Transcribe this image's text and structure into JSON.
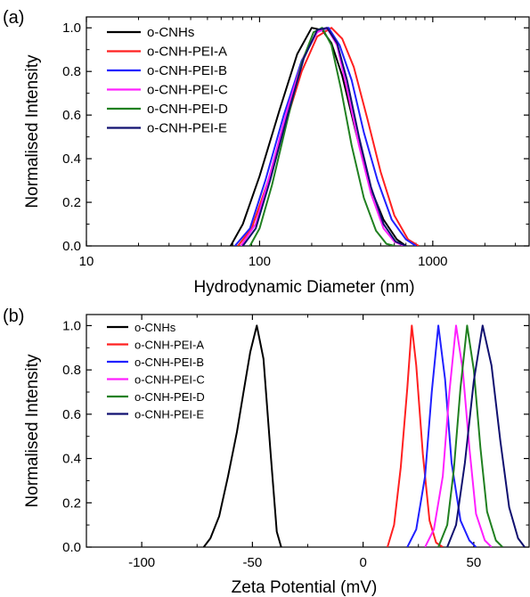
{
  "colors": {
    "o-CNHs": "#000000",
    "o-CNH-PEI-A": "#ff2020",
    "o-CNH-PEI-B": "#2020ff",
    "o-CNH-PEI-C": "#ff20ff",
    "o-CNH-PEI-D": "#208020",
    "o-CNH-PEI-E": "#101070"
  },
  "chart_data": [
    {
      "type": "line",
      "panel_label": "(a)",
      "xlabel": "Hydrodynamic Diameter (nm)",
      "ylabel": "Normalised Intensity",
      "x_scale": "log",
      "xlim": [
        10,
        3600
      ],
      "ylim": [
        0,
        1.05
      ],
      "x_ticks": [
        10,
        100,
        1000
      ],
      "x_tick_labels": [
        "10",
        "100",
        "1000"
      ],
      "y_ticks": [
        0,
        0.2,
        0.4,
        0.6,
        0.8,
        1.0
      ],
      "y_tick_labels": [
        "0.0",
        "0.2",
        "0.4",
        "0.6",
        "0.8",
        "1.0"
      ],
      "legend_position": "top-left",
      "series": [
        {
          "name": "o-CNHs",
          "x": [
            68,
            80,
            100,
            130,
            165,
            200,
            230,
            260,
            300,
            360,
            430,
            520,
            620,
            700
          ],
          "y": [
            0,
            0.1,
            0.32,
            0.62,
            0.88,
            1.0,
            0.99,
            0.93,
            0.78,
            0.52,
            0.28,
            0.12,
            0.03,
            0
          ]
        },
        {
          "name": "o-CNH-PEI-A",
          "x": [
            75,
            90,
            110,
            140,
            175,
            215,
            260,
            300,
            350,
            420,
            500,
            600,
            720,
            830
          ],
          "y": [
            0,
            0.08,
            0.28,
            0.55,
            0.8,
            0.96,
            1.0,
            0.95,
            0.82,
            0.58,
            0.34,
            0.14,
            0.03,
            0
          ]
        },
        {
          "name": "o-CNH-PEI-B",
          "x": [
            72,
            88,
            108,
            138,
            175,
            215,
            250,
            290,
            340,
            400,
            480,
            580,
            700,
            800
          ],
          "y": [
            0,
            0.08,
            0.3,
            0.6,
            0.85,
            0.98,
            1.0,
            0.92,
            0.76,
            0.52,
            0.3,
            0.12,
            0.03,
            0
          ]
        },
        {
          "name": "o-CNH-PEI-C",
          "x": [
            78,
            95,
            115,
            145,
            180,
            215,
            245,
            280,
            320,
            375,
            440,
            520,
            600,
            680
          ],
          "y": [
            0,
            0.1,
            0.33,
            0.63,
            0.87,
            0.98,
            1.0,
            0.92,
            0.72,
            0.46,
            0.24,
            0.08,
            0.02,
            0
          ]
        },
        {
          "name": "o-CNH-PEI-D",
          "x": [
            88,
            100,
            118,
            145,
            175,
            205,
            230,
            260,
            295,
            340,
            400,
            470,
            540,
            600
          ],
          "y": [
            0,
            0.08,
            0.28,
            0.58,
            0.84,
            0.98,
            1.0,
            0.92,
            0.72,
            0.46,
            0.22,
            0.07,
            0.01,
            0
          ]
        },
        {
          "name": "o-CNH-PEI-E",
          "x": [
            80,
            95,
            115,
            145,
            180,
            215,
            245,
            280,
            320,
            375,
            440,
            520,
            610,
            700
          ],
          "y": [
            0,
            0.08,
            0.3,
            0.6,
            0.86,
            0.99,
            1.0,
            0.93,
            0.76,
            0.5,
            0.27,
            0.1,
            0.02,
            0
          ]
        }
      ]
    },
    {
      "type": "line",
      "panel_label": "(b)",
      "xlabel": "Zeta Potential (mV)",
      "ylabel": "Normalised Intensity",
      "x_scale": "linear",
      "xlim": [
        -125,
        75
      ],
      "ylim": [
        0,
        1.05
      ],
      "x_ticks": [
        -100,
        -50,
        0,
        50
      ],
      "x_tick_labels": [
        "-100",
        "-50",
        "0",
        "50"
      ],
      "y_ticks": [
        0,
        0.2,
        0.4,
        0.6,
        0.8,
        1.0
      ],
      "y_tick_labels": [
        "0.0",
        "0.2",
        "0.4",
        "0.6",
        "0.8",
        "1.0"
      ],
      "legend_position": "top-left",
      "series": [
        {
          "name": "o-CNHs",
          "x": [
            -72,
            -69,
            -65,
            -61,
            -57,
            -54,
            -51,
            -48,
            -45,
            -42,
            -39,
            -37
          ],
          "y": [
            0,
            0.04,
            0.14,
            0.32,
            0.52,
            0.7,
            0.88,
            1.0,
            0.85,
            0.45,
            0.07,
            0
          ]
        },
        {
          "name": "o-CNH-PEI-A",
          "x": [
            11,
            14,
            17,
            20,
            22,
            24,
            27,
            30,
            33,
            36
          ],
          "y": [
            0,
            0.1,
            0.36,
            0.72,
            1.0,
            0.82,
            0.42,
            0.12,
            0.02,
            0
          ]
        },
        {
          "name": "o-CNH-PEI-B",
          "x": [
            20,
            24,
            28,
            31,
            34,
            37,
            40,
            44,
            48,
            51
          ],
          "y": [
            0,
            0.08,
            0.32,
            0.7,
            1.0,
            0.76,
            0.38,
            0.12,
            0.03,
            0
          ]
        },
        {
          "name": "o-CNH-PEI-C",
          "x": [
            28,
            32,
            36,
            39,
            42,
            45,
            48,
            51,
            55,
            58
          ],
          "y": [
            0,
            0.08,
            0.32,
            0.7,
            1.0,
            0.8,
            0.45,
            0.15,
            0.03,
            0
          ]
        },
        {
          "name": "o-CNH-PEI-D",
          "x": [
            34,
            38,
            41,
            44,
            47,
            50,
            53,
            56,
            60,
            63
          ],
          "y": [
            0,
            0.1,
            0.35,
            0.72,
            1.0,
            0.8,
            0.45,
            0.16,
            0.03,
            0
          ]
        },
        {
          "name": "o-CNH-PEI-E",
          "x": [
            38,
            42,
            46,
            50,
            54,
            58,
            62,
            66,
            70,
            73
          ],
          "y": [
            0,
            0.1,
            0.38,
            0.75,
            1.0,
            0.82,
            0.48,
            0.18,
            0.04,
            0
          ]
        }
      ]
    }
  ]
}
